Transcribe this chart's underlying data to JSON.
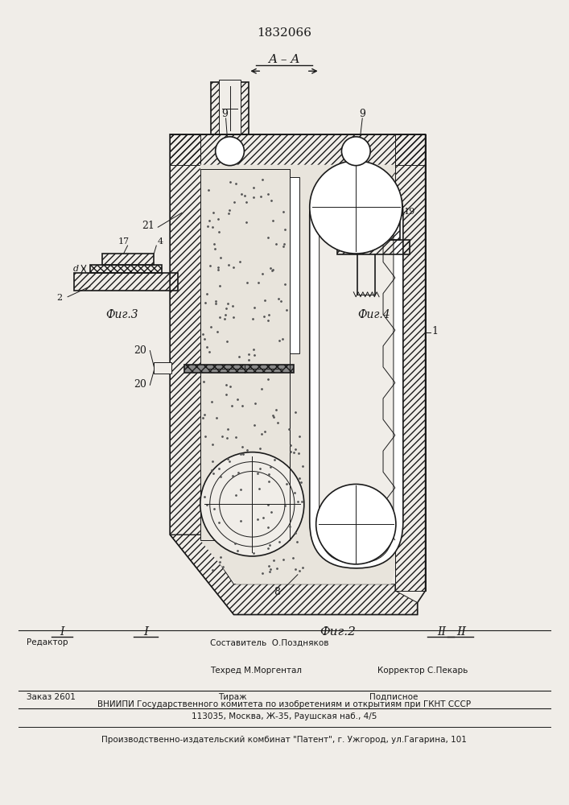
{
  "patent_number": "1832066",
  "bg": "#f0ede8",
  "lc": "#1a1a1a",
  "fig2_label": "Фиг.2",
  "fig3_label": "Фиг.3",
  "fig4_label": "Фиг.4",
  "section_label": "A – A",
  "roman_I": "I",
  "roman_II": "II",
  "footer_editor": "Редактор",
  "footer_sostavitel": "Составитель  О.Поздняков",
  "footer_tekhred": "Техред М.Моргентал",
  "footer_korrektor": "Корректор С.Пекарь",
  "footer_zakaz": "Заказ 2601",
  "footer_tirazh": "Тираж",
  "footer_podpisnoe": "Подписное",
  "footer_vniip": "ВНИИПИ Государственного комитета по изобретениям и открытиям при ГКНТ СССР",
  "footer_address": "113035, Москва, Ж-35, Раушская наб., 4/5",
  "footer_publisher": "Производственно-издательский комбинат \"Патент\", г. Ужгород, ул.Гагарина, 101"
}
